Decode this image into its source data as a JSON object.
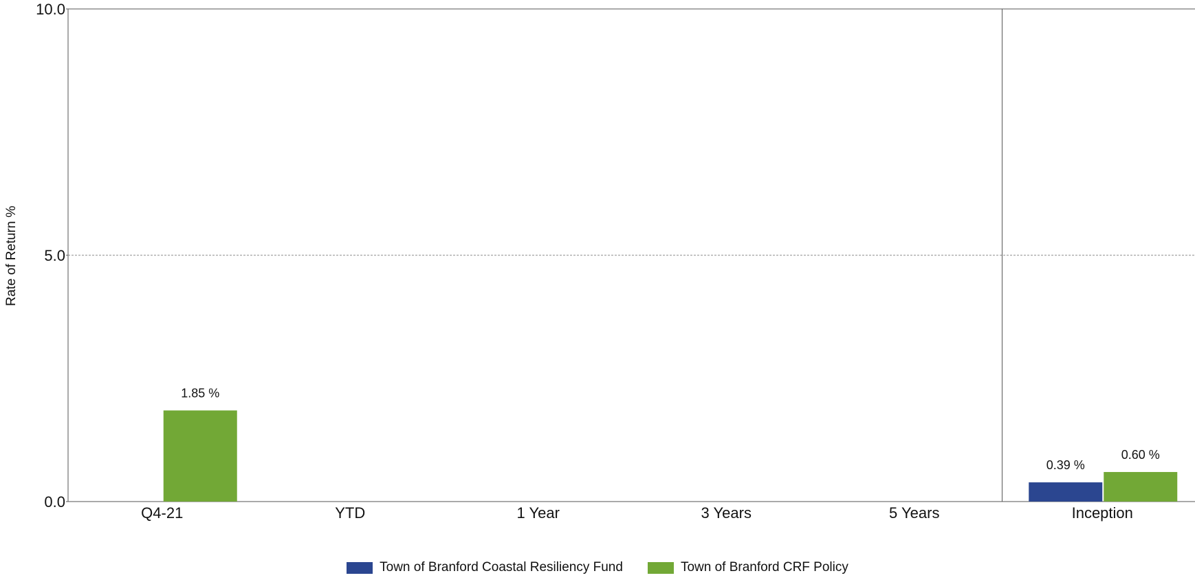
{
  "chart_data": {
    "type": "bar",
    "ylabel": "Rate of Return %",
    "ylim": [
      0,
      10
    ],
    "yticks": [
      "0.0",
      "5.0",
      "10.0"
    ],
    "categories": [
      "Q4-21",
      "YTD",
      "1 Year",
      "3 Years",
      "5 Years",
      "Inception"
    ],
    "series": [
      {
        "name": "Town of Branford Coastal Resiliency Fund",
        "color": "#2b4690",
        "values": [
          null,
          null,
          null,
          null,
          null,
          0.39
        ],
        "labels": [
          null,
          null,
          null,
          null,
          null,
          "0.39 %"
        ]
      },
      {
        "name": "Town of Branford CRF Policy",
        "color": "#72a836",
        "values": [
          1.85,
          null,
          null,
          null,
          null,
          0.6
        ],
        "labels": [
          "1.85 %",
          null,
          null,
          null,
          null,
          "0.60 %"
        ]
      }
    ],
    "grid": "dashed line at 5.0",
    "legend": "bottom-center"
  }
}
